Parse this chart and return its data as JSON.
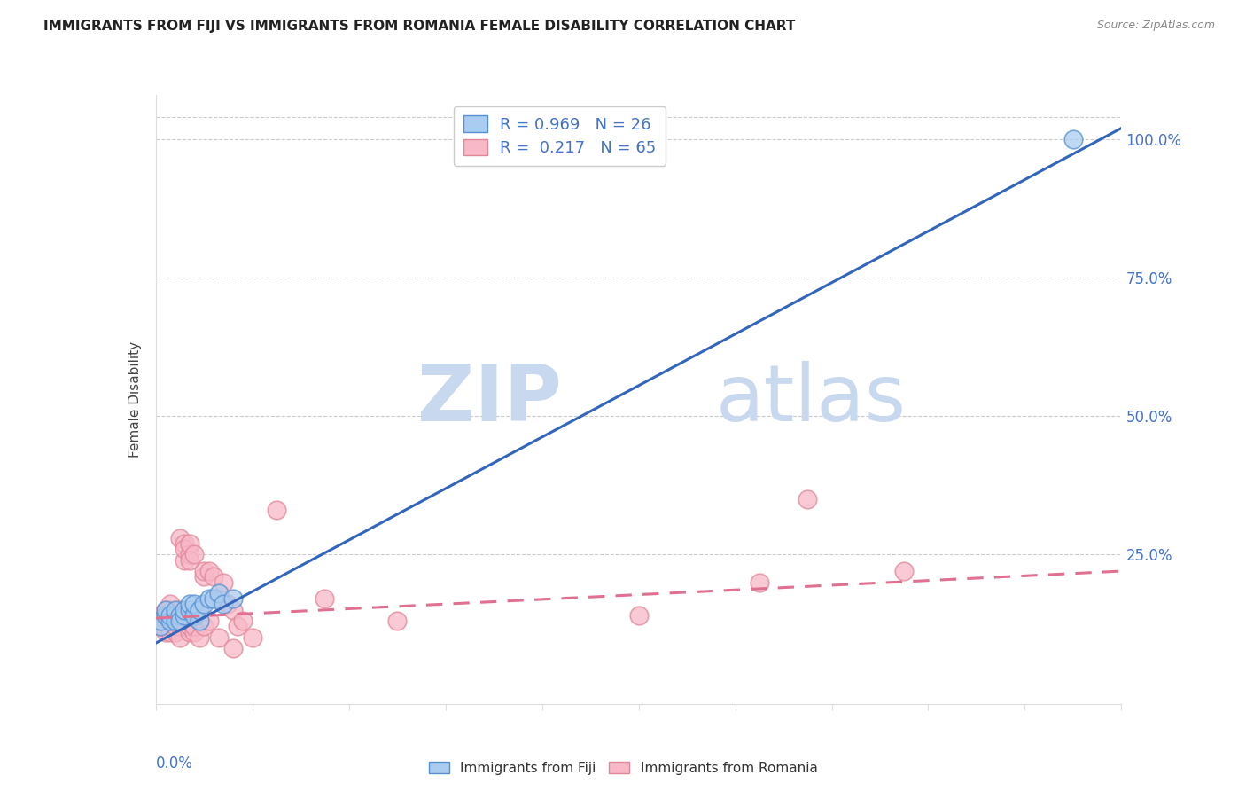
{
  "title": "IMMIGRANTS FROM FIJI VS IMMIGRANTS FROM ROMANIA FEMALE DISABILITY CORRELATION CHART",
  "source": "Source: ZipAtlas.com",
  "ylabel": "Female Disability",
  "fiji_R": 0.969,
  "fiji_N": 26,
  "romania_R": 0.217,
  "romania_N": 65,
  "fiji_color": "#aaccf0",
  "fiji_edge_color": "#5590d0",
  "fiji_line_color": "#3366bb",
  "romania_color": "#f8b8c8",
  "romania_edge_color": "#e08898",
  "romania_line_color": "#e07090",
  "watermark_zip": "ZIP",
  "watermark_atlas": "atlas",
  "fiji_scatter_x": [
    0.001,
    0.001,
    0.002,
    0.002,
    0.003,
    0.003,
    0.004,
    0.004,
    0.004,
    0.005,
    0.005,
    0.006,
    0.006,
    0.007,
    0.007,
    0.008,
    0.008,
    0.009,
    0.009,
    0.01,
    0.011,
    0.012,
    0.013,
    0.014,
    0.016,
    0.19
  ],
  "fiji_scatter_y": [
    0.12,
    0.13,
    0.14,
    0.15,
    0.13,
    0.14,
    0.14,
    0.13,
    0.15,
    0.14,
    0.13,
    0.14,
    0.15,
    0.15,
    0.16,
    0.14,
    0.16,
    0.13,
    0.15,
    0.16,
    0.17,
    0.17,
    0.18,
    0.16,
    0.17,
    1.0
  ],
  "romania_scatter_x": [
    0.001,
    0.001,
    0.001,
    0.001,
    0.001,
    0.002,
    0.002,
    0.002,
    0.002,
    0.002,
    0.002,
    0.003,
    0.003,
    0.003,
    0.003,
    0.003,
    0.003,
    0.003,
    0.004,
    0.004,
    0.004,
    0.004,
    0.005,
    0.005,
    0.005,
    0.005,
    0.005,
    0.005,
    0.006,
    0.006,
    0.006,
    0.006,
    0.007,
    0.007,
    0.007,
    0.007,
    0.007,
    0.008,
    0.008,
    0.008,
    0.009,
    0.009,
    0.009,
    0.01,
    0.01,
    0.01,
    0.011,
    0.011,
    0.012,
    0.013,
    0.013,
    0.014,
    0.015,
    0.016,
    0.016,
    0.017,
    0.018,
    0.02,
    0.025,
    0.035,
    0.05,
    0.1,
    0.125,
    0.135,
    0.155
  ],
  "romania_scatter_y": [
    0.12,
    0.13,
    0.14,
    0.13,
    0.12,
    0.13,
    0.15,
    0.12,
    0.11,
    0.14,
    0.13,
    0.14,
    0.12,
    0.15,
    0.16,
    0.13,
    0.14,
    0.11,
    0.14,
    0.13,
    0.11,
    0.12,
    0.28,
    0.15,
    0.13,
    0.12,
    0.14,
    0.1,
    0.27,
    0.24,
    0.26,
    0.13,
    0.25,
    0.27,
    0.11,
    0.12,
    0.24,
    0.25,
    0.11,
    0.12,
    0.13,
    0.1,
    0.14,
    0.21,
    0.12,
    0.22,
    0.22,
    0.13,
    0.21,
    0.1,
    0.17,
    0.2,
    0.16,
    0.15,
    0.08,
    0.12,
    0.13,
    0.1,
    0.33,
    0.17,
    0.13,
    0.14,
    0.2,
    0.35,
    0.22
  ],
  "xmin": 0.0,
  "xmax": 0.2,
  "ymin": -0.02,
  "ymax": 1.08,
  "grid_color": "#cccccc",
  "background_color": "#ffffff",
  "fiji_line_x0": 0.0,
  "fiji_line_y0": 0.09,
  "fiji_line_x1": 0.2,
  "fiji_line_y1": 1.02,
  "romania_line_x0": 0.0,
  "romania_line_y0": 0.135,
  "romania_line_x1": 0.2,
  "romania_line_y1": 0.22
}
